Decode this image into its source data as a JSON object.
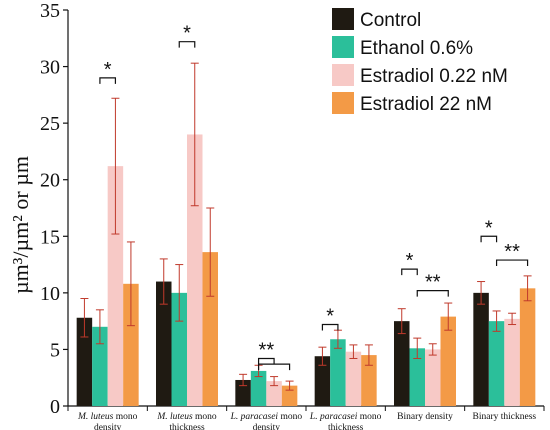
{
  "chart_data": {
    "type": "bar",
    "ylabel": "µm³/µm² or µm",
    "ylim": [
      0,
      35
    ],
    "yticks": [
      0,
      5,
      10,
      15,
      20,
      25,
      30,
      35
    ],
    "grid": false,
    "legend_position": "top-right",
    "categories": [
      {
        "parts": [
          {
            "text": "M. luteus",
            "italic": true
          },
          {
            "text": " mono",
            "italic": false
          }
        ],
        "line2": "density"
      },
      {
        "parts": [
          {
            "text": "M. luteus",
            "italic": true
          },
          {
            "text": " mono",
            "italic": false
          }
        ],
        "line2": "thickness"
      },
      {
        "parts": [
          {
            "text": "L. paracasei",
            "italic": true
          },
          {
            "text": " mono",
            "italic": false
          }
        ],
        "line2": "density"
      },
      {
        "parts": [
          {
            "text": "L. paracasei",
            "italic": true
          },
          {
            "text": " mono",
            "italic": false
          }
        ],
        "line2": "thickness"
      },
      {
        "parts": [
          {
            "text": "Binary density",
            "italic": false
          }
        ],
        "line2": ""
      },
      {
        "parts": [
          {
            "text": "Binary thickness",
            "italic": false
          }
        ],
        "line2": ""
      }
    ],
    "series": [
      {
        "name": "Control",
        "color": "#1f1a12",
        "values": [
          7.8,
          11.0,
          2.3,
          4.4,
          7.5,
          10.0
        ],
        "errors": [
          1.7,
          2.0,
          0.5,
          0.8,
          1.1,
          1.0
        ]
      },
      {
        "name": "Ethanol 0.6%",
        "color": "#2bbf9a",
        "values": [
          7.0,
          10.0,
          3.1,
          5.9,
          5.1,
          7.5
        ],
        "errors": [
          1.5,
          2.5,
          0.5,
          0.8,
          0.9,
          0.9
        ]
      },
      {
        "name": "Estradiol 0.22 nM",
        "color": "#f7c9c6",
        "values": [
          21.2,
          24.0,
          2.2,
          4.8,
          5.0,
          7.7
        ],
        "errors": [
          6.0,
          6.3,
          0.4,
          0.6,
          0.5,
          0.5
        ]
      },
      {
        "name": "Estradiol 22 nM",
        "color": "#f39a46",
        "values": [
          10.8,
          13.6,
          1.8,
          4.5,
          7.9,
          10.4
        ],
        "errors": [
          3.7,
          3.9,
          0.4,
          0.9,
          1.2,
          1.1
        ]
      }
    ],
    "significance": [
      {
        "category": 0,
        "from": 1,
        "to": 2,
        "y": 29.0,
        "label": "*"
      },
      {
        "category": 1,
        "from": 1,
        "to": 2,
        "y": 32.2,
        "label": "*"
      },
      {
        "category": 2,
        "from": 1,
        "to": 2,
        "y": 4.2,
        "label": "**"
      },
      {
        "category": 2,
        "from": 1,
        "to": 3,
        "y": 3.7,
        "label": ""
      },
      {
        "category": 3,
        "from": 0,
        "to": 1,
        "y": 7.2,
        "label": "*"
      },
      {
        "category": 4,
        "from": 0,
        "to": 1,
        "y": 12.1,
        "label": "*"
      },
      {
        "category": 4,
        "from": 1,
        "to": 3,
        "y": 10.2,
        "label": "**"
      },
      {
        "category": 5,
        "from": 0,
        "to": 1,
        "y": 15.0,
        "label": "*"
      },
      {
        "category": 5,
        "from": 1,
        "to": 3,
        "y": 12.9,
        "label": "**"
      }
    ]
  }
}
